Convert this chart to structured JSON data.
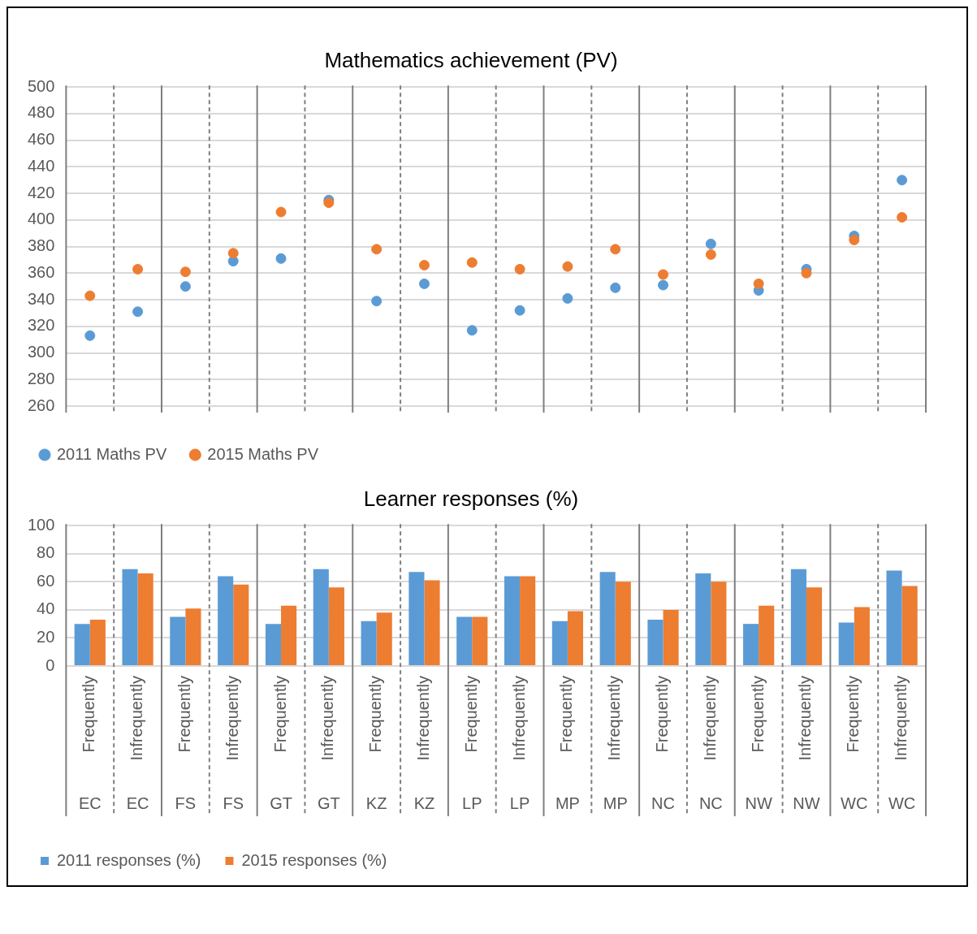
{
  "chart_data": [
    {
      "type": "scatter",
      "title": "Mathematics achievement (PV)",
      "categories": [
        null,
        null,
        null,
        null,
        null,
        null,
        null,
        null,
        null,
        null,
        null,
        null,
        null,
        null,
        null,
        null,
        null,
        null
      ],
      "series": [
        {
          "name": "2011 Maths PV",
          "color": "#5b9bd5",
          "values": [
            313,
            331,
            350,
            369,
            371,
            415,
            339,
            352,
            317,
            332,
            341,
            349,
            351,
            382,
            347,
            363,
            388,
            430
          ]
        },
        {
          "name": "2015 Maths PV",
          "color": "#ed7d31",
          "values": [
            343,
            363,
            361,
            375,
            406,
            413,
            378,
            366,
            368,
            363,
            365,
            378,
            359,
            374,
            352,
            360,
            385,
            402
          ]
        }
      ],
      "ylim": [
        260,
        500
      ],
      "yticks": [
        260,
        280,
        300,
        320,
        340,
        360,
        380,
        400,
        420,
        440,
        460,
        480,
        500
      ],
      "grid": "y",
      "legend": "bottom",
      "marker": "circle"
    },
    {
      "type": "bar",
      "title": "Learner responses (%)",
      "categories": [
        "Frequently\nEC",
        "Infrequently\nEC",
        "Frequently\nFS",
        "Infrequently\nFS",
        "Frequently\nGT",
        "Infrequently\nGT",
        "Frequently\nKZ",
        "Infrequently\nKZ",
        "Frequently\nLP",
        "Infrequently\nLP",
        "Frequently\nMP",
        "Infrequently\nMP",
        "Frequently\nNC",
        "Infrequently\nNC",
        "Frequently\nNW",
        "Infrequently\nNW",
        "Frequently\nWC",
        "Infrequently\nWC"
      ],
      "series": [
        {
          "name": "2011 responses (%)",
          "color": "#5b9bd5",
          "values": [
            30,
            69,
            35,
            64,
            30,
            69,
            32,
            67,
            35,
            64,
            32,
            67,
            33,
            66,
            30,
            69,
            31,
            68
          ]
        },
        {
          "name": "2015 responses (%)",
          "color": "#ed7d31",
          "values": [
            33,
            66,
            41,
            58,
            43,
            56,
            38,
            61,
            35,
            64,
            39,
            60,
            40,
            60,
            43,
            56,
            42,
            57
          ]
        }
      ],
      "ylim": [
        0,
        100
      ],
      "yticks": [
        0,
        20,
        40,
        60,
        80,
        100
      ],
      "grid": "y",
      "legend": "bottom"
    }
  ]
}
